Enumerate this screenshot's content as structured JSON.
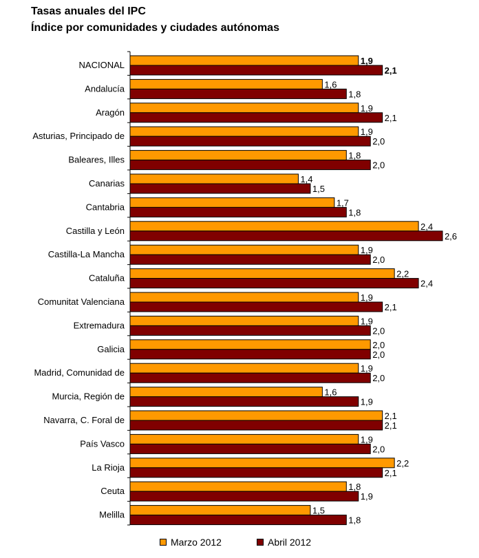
{
  "chart_data": {
    "type": "bar",
    "orientation": "horizontal",
    "title": "Tasas anuales del IPC",
    "subtitle": "Índice por comunidades y ciudades autónomas",
    "categories": [
      "NACIONAL",
      "Andalucía",
      "Aragón",
      "Asturias, Principado de",
      "Baleares, Illes",
      "Canarias",
      "Cantabria",
      "Castilla y León",
      "Castilla-La Mancha",
      "Cataluña",
      "Comunitat Valenciana",
      "Extremadura",
      "Galicia",
      "Madrid, Comunidad de",
      "Murcia, Región de",
      "Navarra, C. Foral de",
      "País Vasco",
      "La Rioja",
      "Ceuta",
      "Melilla"
    ],
    "series": [
      {
        "name": "Marzo 2012",
        "color": "#ff9900",
        "values": [
          1.9,
          1.6,
          1.9,
          1.9,
          1.8,
          1.4,
          1.7,
          2.4,
          1.9,
          2.2,
          1.9,
          1.9,
          2.0,
          1.9,
          1.6,
          2.1,
          1.9,
          2.2,
          1.8,
          1.5
        ],
        "labels": [
          "1,9",
          "1,6",
          "1,9",
          "1,9",
          "1,8",
          "1,4",
          "1,7",
          "2,4",
          "1,9",
          "2,2",
          "1,9",
          "1,9",
          "2,0",
          "1,9",
          "1,6",
          "2,1",
          "1,9",
          "2,2",
          "1,8",
          "1,5"
        ]
      },
      {
        "name": "Abril 2012",
        "color": "#800000",
        "values": [
          2.1,
          1.8,
          2.1,
          2.0,
          2.0,
          1.5,
          1.8,
          2.6,
          2.0,
          2.4,
          2.1,
          2.0,
          2.0,
          2.0,
          1.9,
          2.1,
          2.0,
          2.1,
          1.9,
          1.8
        ],
        "labels": [
          "2,1",
          "1,8",
          "2,1",
          "2,0",
          "2,0",
          "1,5",
          "1,8",
          "2,6",
          "2,0",
          "2,4",
          "2,1",
          "2,0",
          "2,0",
          "2,0",
          "1,9",
          "2,1",
          "2,0",
          "2,1",
          "1,9",
          "1,8"
        ]
      }
    ],
    "xlim": [
      0,
      2.6
    ],
    "bold_category": "NACIONAL",
    "grid": false,
    "legend_position": "bottom"
  }
}
